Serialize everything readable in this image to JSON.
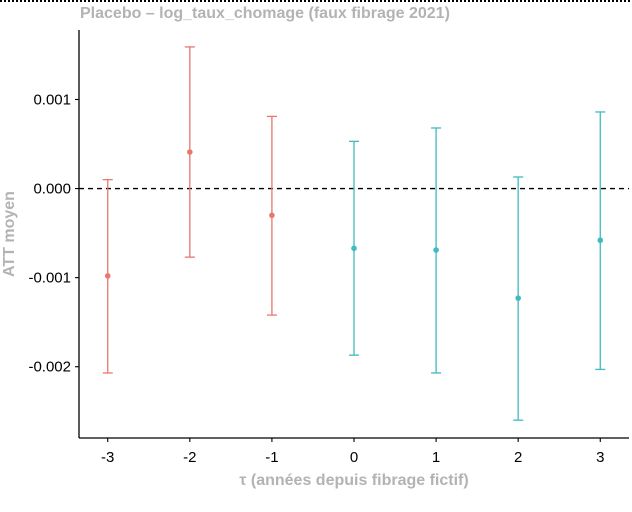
{
  "chart_data": {
    "type": "scatter",
    "title": "Placebo – log_taux_chomage (faux fibrage 2021)",
    "xlabel": "τ (années depuis fibrage fictif)",
    "ylabel": "ATT moyen",
    "x_ticks": [
      -3,
      -2,
      -1,
      0,
      1,
      2,
      3
    ],
    "x_tick_labels": [
      "-3",
      "-2",
      "-1",
      "0",
      "1",
      "2",
      "3"
    ],
    "y_ticks": [
      -0.002,
      -0.001,
      0.0,
      0.001
    ],
    "y_tick_labels": [
      "-0.002",
      "-0.001",
      "0.000",
      "0.001"
    ],
    "xlim": [
      -3.35,
      3.35
    ],
    "ylim": [
      -0.0028,
      0.00178
    ],
    "reference_line": 0,
    "grid": false,
    "legend": "none",
    "series": [
      {
        "color": "#E8776C",
        "points": [
          {
            "x": -3,
            "y": -0.00098,
            "lo": -0.00207,
            "hi": 0.0001
          },
          {
            "x": -2,
            "y": 0.00041,
            "lo": -0.00077,
            "hi": 0.00159
          },
          {
            "x": -1,
            "y": -0.0003,
            "lo": -0.00142,
            "hi": 0.00081
          }
        ]
      },
      {
        "color": "#3FBBC1",
        "points": [
          {
            "x": 0,
            "y": -0.00067,
            "lo": -0.00187,
            "hi": 0.00053
          },
          {
            "x": 1,
            "y": -0.00069,
            "lo": -0.00207,
            "hi": 0.00068
          },
          {
            "x": 2,
            "y": -0.00123,
            "lo": -0.0026,
            "hi": 0.00013
          },
          {
            "x": 3,
            "y": -0.00058,
            "lo": -0.00203,
            "hi": 0.00086
          }
        ]
      }
    ]
  }
}
